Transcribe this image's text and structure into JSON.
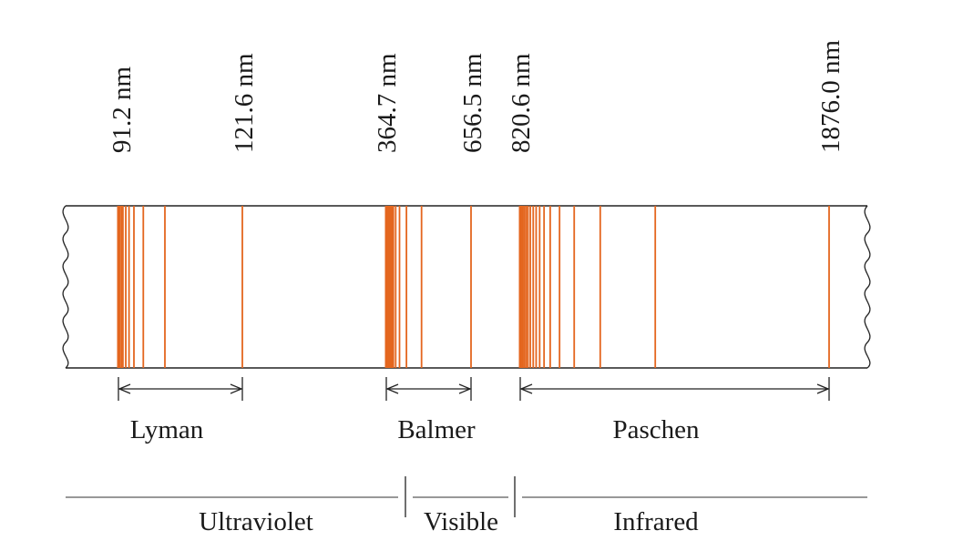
{
  "wavelength_labels": [
    "91.2 nm",
    "121.6 nm",
    "364.7 nm",
    "656.5 nm",
    "820.6 nm",
    "1876.0 nm"
  ],
  "series": [
    {
      "name": "Lyman",
      "limit_nm": 91.2,
      "first_line_nm": 121.6,
      "lines_nm": [
        91.2,
        91.5,
        91.9,
        92.3,
        93.0,
        93.8,
        95.0,
        97.3,
        102.6,
        121.6
      ]
    },
    {
      "name": "Balmer",
      "limit_nm": 364.7,
      "first_line_nm": 656.5,
      "lines_nm": [
        364.7,
        366.0,
        367.5,
        369.5,
        371.5,
        374.0,
        377.0,
        380.0,
        384.0,
        389.0,
        397.0,
        410.2,
        434.1,
        486.1,
        656.5
      ]
    },
    {
      "name": "Paschen",
      "limit_nm": 820.6,
      "first_line_nm": 1876.0,
      "lines_nm": [
        820.6,
        823.0,
        826.0,
        830.0,
        835.0,
        841.0,
        847.0,
        855.0,
        865.0,
        875.0,
        887.0,
        902.0,
        923.0,
        955.0,
        1005.0,
        1094.0,
        1282.0,
        1876.0
      ]
    }
  ],
  "regions": [
    "Ultraviolet",
    "Visible",
    "Infrared"
  ],
  "line_color": "#e4661f"
}
